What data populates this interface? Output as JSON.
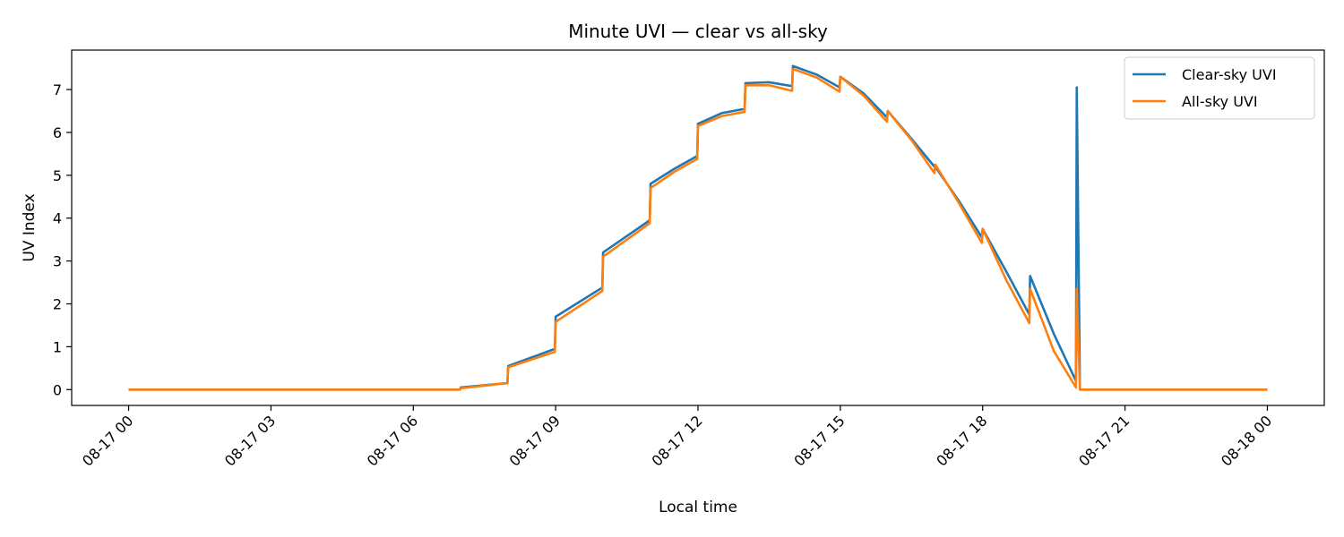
{
  "chart_data": {
    "type": "line",
    "title": "Minute UVI — clear vs all-sky",
    "xlabel": "Local time",
    "ylabel": "UV Index",
    "xlim": [
      "2024-08-16 22:48",
      "2024-08-18 01:12"
    ],
    "ylim": [
      -0.37,
      7.92
    ],
    "x_ticks": [
      "2024-08-17 00:00",
      "2024-08-17 03:00",
      "2024-08-17 06:00",
      "2024-08-17 09:00",
      "2024-08-17 12:00",
      "2024-08-17 15:00",
      "2024-08-17 18:00",
      "2024-08-17 21:00",
      "2024-08-18 00:00"
    ],
    "x_tick_labels": [
      "08-17 00",
      "08-17 03",
      "08-17 06",
      "08-17 09",
      "08-17 12",
      "08-17 15",
      "08-17 18",
      "08-17 21",
      "08-18 00"
    ],
    "y_ticks": [
      0,
      1,
      2,
      3,
      4,
      5,
      6,
      7
    ],
    "y_tick_labels": [
      "0",
      "1",
      "2",
      "3",
      "4",
      "5",
      "6",
      "7"
    ],
    "grid": false,
    "legend_position": "top-right",
    "series": [
      {
        "name": "Clear-sky UVI",
        "color": "#1f77b4",
        "x": [
          "2024-08-17 00:00",
          "2024-08-17 06:59",
          "2024-08-17 07:00",
          "2024-08-17 07:59",
          "2024-08-17 08:00",
          "2024-08-17 08:59",
          "2024-08-17 09:00",
          "2024-08-17 09:59",
          "2024-08-17 10:00",
          "2024-08-17 10:59",
          "2024-08-17 11:00",
          "2024-08-17 11:30",
          "2024-08-17 11:59",
          "2024-08-17 12:00",
          "2024-08-17 12:30",
          "2024-08-17 12:59",
          "2024-08-17 13:00",
          "2024-08-17 13:30",
          "2024-08-17 13:59",
          "2024-08-17 14:00",
          "2024-08-17 14:30",
          "2024-08-17 14:59",
          "2024-08-17 15:00",
          "2024-08-17 15:30",
          "2024-08-17 15:59",
          "2024-08-17 16:00",
          "2024-08-17 16:30",
          "2024-08-17 16:59",
          "2024-08-17 17:00",
          "2024-08-17 17:30",
          "2024-08-17 17:59",
          "2024-08-17 18:00",
          "2024-08-17 18:30",
          "2024-08-17 18:59",
          "2024-08-17 19:00",
          "2024-08-17 19:30",
          "2024-08-17 19:58",
          "2024-08-17 19:59",
          "2024-08-17 20:03",
          "2024-08-17 20:04",
          "2024-08-18 00:00"
        ],
        "values": [
          0,
          0,
          0.05,
          0.15,
          0.55,
          0.95,
          1.7,
          2.38,
          3.2,
          3.95,
          4.8,
          5.15,
          5.45,
          6.2,
          6.45,
          6.55,
          7.15,
          7.17,
          7.08,
          7.55,
          7.35,
          7.05,
          7.3,
          6.9,
          6.35,
          6.5,
          5.85,
          5.2,
          5.2,
          4.4,
          3.55,
          3.75,
          2.75,
          1.75,
          2.65,
          1.3,
          0.2,
          7.05,
          0,
          0,
          0
        ]
      },
      {
        "name": "All-sky UVI",
        "color": "#ff7f0e",
        "x": [
          "2024-08-17 00:00",
          "2024-08-17 06:59",
          "2024-08-17 07:00",
          "2024-08-17 07:59",
          "2024-08-17 08:00",
          "2024-08-17 08:59",
          "2024-08-17 09:00",
          "2024-08-17 09:59",
          "2024-08-17 10:00",
          "2024-08-17 10:59",
          "2024-08-17 11:00",
          "2024-08-17 11:30",
          "2024-08-17 11:59",
          "2024-08-17 12:00",
          "2024-08-17 12:30",
          "2024-08-17 12:59",
          "2024-08-17 13:00",
          "2024-08-17 13:30",
          "2024-08-17 13:59",
          "2024-08-17 14:00",
          "2024-08-17 14:30",
          "2024-08-17 14:59",
          "2024-08-17 15:00",
          "2024-08-17 15:30",
          "2024-08-17 15:59",
          "2024-08-17 16:00",
          "2024-08-17 16:30",
          "2024-08-17 16:59",
          "2024-08-17 17:00",
          "2024-08-17 17:30",
          "2024-08-17 17:59",
          "2024-08-17 18:00",
          "2024-08-17 18:30",
          "2024-08-17 18:59",
          "2024-08-17 19:00",
          "2024-08-17 19:30",
          "2024-08-17 19:58",
          "2024-08-17 19:59",
          "2024-08-17 20:03",
          "2024-08-17 20:04",
          "2024-08-18 00:00"
        ],
        "values": [
          0,
          0,
          0.03,
          0.15,
          0.52,
          0.88,
          1.58,
          2.3,
          3.1,
          3.88,
          4.7,
          5.08,
          5.38,
          6.15,
          6.38,
          6.48,
          7.1,
          7.1,
          6.97,
          7.48,
          7.28,
          6.95,
          7.3,
          6.85,
          6.25,
          6.5,
          5.82,
          5.05,
          5.25,
          4.35,
          3.42,
          3.75,
          2.55,
          1.55,
          2.35,
          0.9,
          0.05,
          2.35,
          0,
          0,
          0
        ]
      }
    ]
  }
}
